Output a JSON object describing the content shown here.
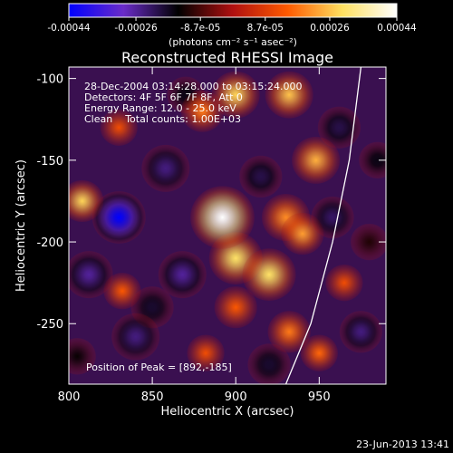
{
  "colorbar": {
    "tick_labels": [
      "-0.00044",
      "-0.00026",
      "-8.7e-05",
      "8.7e-05",
      "0.00026",
      "0.00044"
    ],
    "tick_values": [
      -0.00044,
      -0.00026,
      -8.7e-05,
      8.7e-05,
      0.00026,
      0.00044
    ],
    "range": [
      -0.00044,
      0.00044
    ],
    "unit_label": "(photons cm⁻² s⁻¹ asec⁻²)"
  },
  "title": "Reconstructed RHESSI Image",
  "info": {
    "line1": "28-Dec-2004 03:14:28.000 to 03:15:24.000",
    "line2": "Detectors: 4F 5F 6F 7F 8F, Att 0",
    "line3": "Energy Range: 12.0 - 25.0 keV",
    "line4": "Clean    Total counts: 1.00E+03"
  },
  "peak_label": "Position of Peak = [892,-185]",
  "timestamp": "23-Jun-2013 13:41",
  "colors": {
    "background": "#000000",
    "colormap": [
      "#0000ff",
      "#6a2cc8",
      "#000000",
      "#b01010",
      "#ff5a00",
      "#ffe060",
      "#ffffff"
    ],
    "limb_line": "#ffffff"
  },
  "chart_data": {
    "type": "heatmap",
    "title": "Reconstructed RHESSI Image",
    "xlabel": "Heliocentric X (arcsec)",
    "ylabel": "Heliocentric Y (arcsec)",
    "x_ticks": [
      800,
      850,
      900,
      950
    ],
    "x_tick_labels": [
      "800",
      "850",
      "900",
      "950"
    ],
    "y_ticks": [
      -100,
      -150,
      -200,
      -250
    ],
    "y_tick_labels": [
      "-100",
      "-150",
      "-200",
      "-250"
    ],
    "xlim": [
      800,
      990
    ],
    "ylim": [
      -287,
      -93
    ],
    "peak": [
      892,
      -185
    ],
    "blobs": [
      {
        "x": 892,
        "y": -185,
        "v": 0.00044,
        "s": 12
      },
      {
        "x": 900,
        "y": -210,
        "v": 0.0003,
        "s": 10
      },
      {
        "x": 920,
        "y": -220,
        "v": 0.0003,
        "s": 10
      },
      {
        "x": 930,
        "y": -185,
        "v": 0.0002,
        "s": 9
      },
      {
        "x": 940,
        "y": -195,
        "v": 0.00022,
        "s": 8
      },
      {
        "x": 948,
        "y": -150,
        "v": 0.00024,
        "s": 9
      },
      {
        "x": 900,
        "y": -110,
        "v": 0.00028,
        "s": 9
      },
      {
        "x": 932,
        "y": -110,
        "v": 0.00026,
        "s": 9
      },
      {
        "x": 880,
        "y": -120,
        "v": 0.00018,
        "s": 8
      },
      {
        "x": 808,
        "y": -175,
        "v": 0.00028,
        "s": 8
      },
      {
        "x": 832,
        "y": -230,
        "v": 0.00014,
        "s": 7
      },
      {
        "x": 830,
        "y": -130,
        "v": 0.00012,
        "s": 7
      },
      {
        "x": 900,
        "y": -240,
        "v": 0.00014,
        "s": 8
      },
      {
        "x": 932,
        "y": -255,
        "v": 0.00018,
        "s": 8
      },
      {
        "x": 950,
        "y": -268,
        "v": 0.00016,
        "s": 7
      },
      {
        "x": 882,
        "y": -268,
        "v": 0.00012,
        "s": 7
      },
      {
        "x": 965,
        "y": -225,
        "v": 0.00012,
        "s": 7
      },
      {
        "x": 830,
        "y": -185,
        "v": -0.00044,
        "s": 10
      },
      {
        "x": 812,
        "y": -220,
        "v": -0.00026,
        "s": 9
      },
      {
        "x": 840,
        "y": -258,
        "v": -0.00024,
        "s": 9
      },
      {
        "x": 858,
        "y": -155,
        "v": -0.00024,
        "s": 9
      },
      {
        "x": 868,
        "y": -220,
        "v": -0.00026,
        "s": 9
      },
      {
        "x": 915,
        "y": -160,
        "v": -0.0002,
        "s": 8
      },
      {
        "x": 962,
        "y": -130,
        "v": -0.0002,
        "s": 8
      },
      {
        "x": 958,
        "y": -185,
        "v": -0.00022,
        "s": 8
      },
      {
        "x": 975,
        "y": -255,
        "v": -0.00024,
        "s": 8
      },
      {
        "x": 920,
        "y": -275,
        "v": -0.00018,
        "s": 8
      },
      {
        "x": 870,
        "y": -110,
        "v": -0.00016,
        "s": 7
      },
      {
        "x": 850,
        "y": -240,
        "v": -0.00018,
        "s": 8
      },
      {
        "x": 805,
        "y": -270,
        "v": -0.00014,
        "s": 7
      },
      {
        "x": 985,
        "y": -150,
        "v": -0.00016,
        "s": 7
      },
      {
        "x": 980,
        "y": -200,
        "v": -0.00012,
        "s": 7
      }
    ],
    "limb_points": [
      [
        930,
        -287
      ],
      [
        945,
        -250
      ],
      [
        958,
        -200
      ],
      [
        968,
        -150
      ],
      [
        975,
        -93
      ]
    ],
    "grid": false
  }
}
